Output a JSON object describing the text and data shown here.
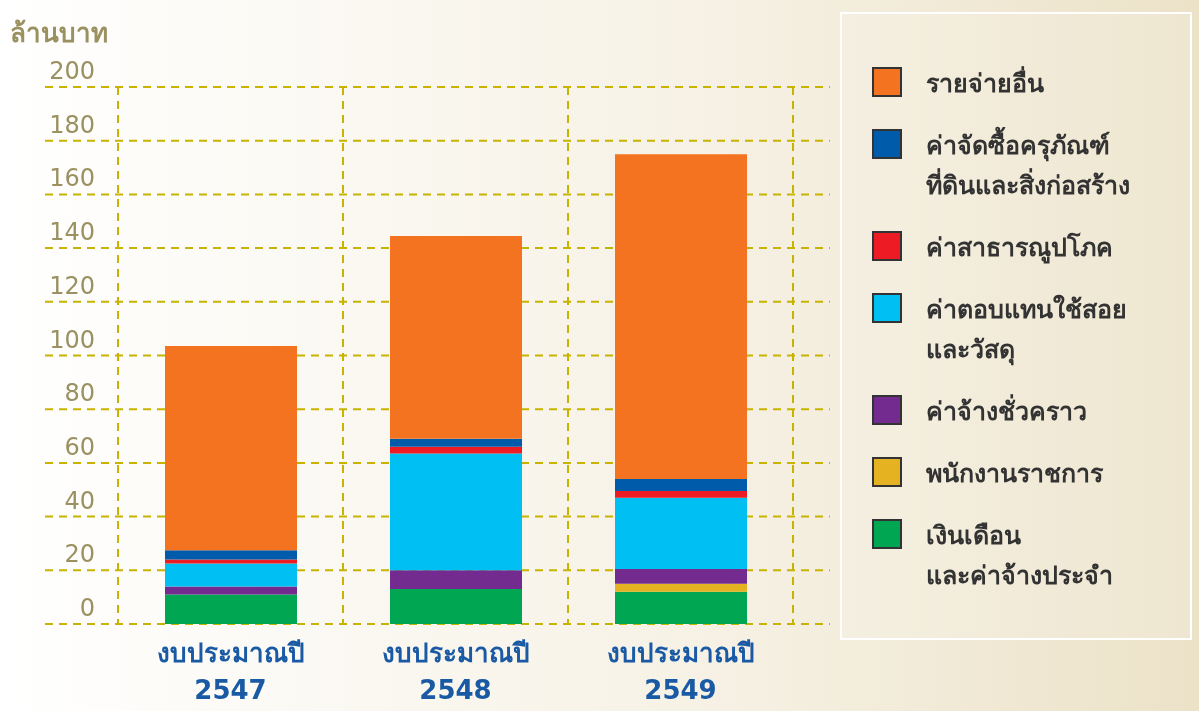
{
  "chart_data": {
    "type": "bar",
    "ylabel": "ล้านบาท",
    "categories": [
      "งบประมาณปี 2547",
      "งบประมาณปี 2548",
      "งบประมาณปี 2549"
    ],
    "stacked": true,
    "ylim": [
      0,
      200
    ],
    "yticks": [
      0,
      20,
      40,
      60,
      80,
      100,
      120,
      140,
      160,
      180,
      200
    ],
    "grid": true,
    "legend": "right",
    "series": [
      {
        "name": "เงินเดือน และค่าจ้างประจำ",
        "color": "#00a651",
        "values": [
          11,
          13,
          12
        ]
      },
      {
        "name": "พนักงานราชการ",
        "color": "#e5b222",
        "values": [
          null,
          null,
          3
        ]
      },
      {
        "name": "ค่าจ้างชั่วคราว",
        "color": "#732b90",
        "values": [
          3,
          7,
          5.5
        ]
      },
      {
        "name": "ค่าตอบแทนใช้สอย และวัสดุ",
        "color": "#00bff3",
        "values": [
          8.5,
          43.5,
          26.5
        ]
      },
      {
        "name": "ค่าสาธารณูปโภค",
        "color": "#ed1c24",
        "values": [
          1.5,
          2.5,
          2.5
        ]
      },
      {
        "name": "ค่าจัดซื้อครุภัณฑ์ ที่ดินและสิ่งก่อสร้าง",
        "color": "#005baa",
        "values": [
          3.5,
          3,
          4.5
        ]
      },
      {
        "name": "รายจ่ายอื่น",
        "color": "#f47321",
        "values": [
          76,
          75.5,
          121
        ]
      }
    ]
  }
}
